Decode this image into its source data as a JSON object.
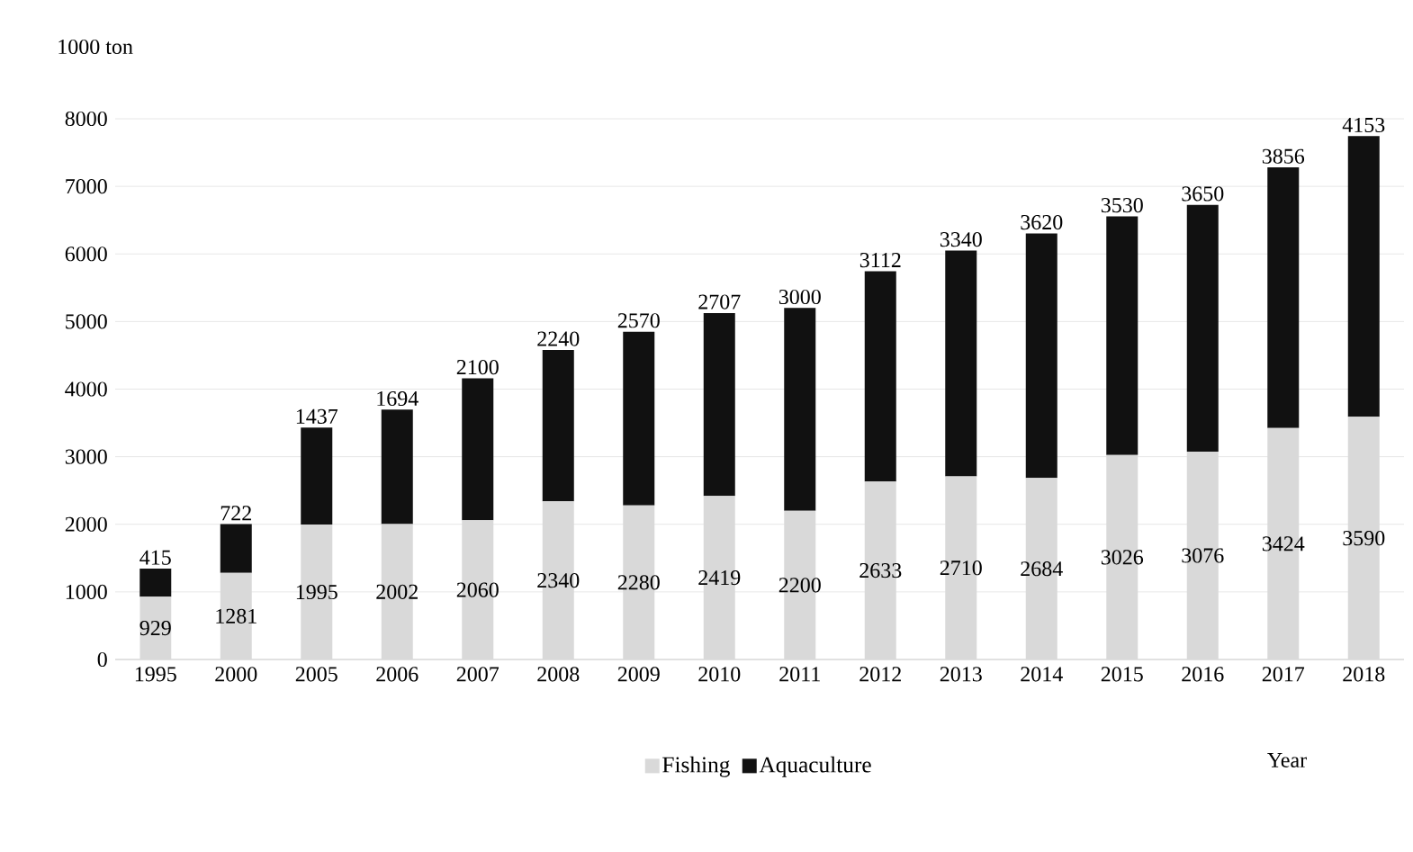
{
  "chart_data": {
    "type": "bar",
    "stacked": true,
    "ylabel": "1000 ton",
    "xlabel": "Year",
    "categories": [
      "1995",
      "2000",
      "2005",
      "2006",
      "2007",
      "2008",
      "2009",
      "2010",
      "2011",
      "2012",
      "2013",
      "2014",
      "2015",
      "2016",
      "2017",
      "2018"
    ],
    "series": [
      {
        "name": "Fishing",
        "color": "#d9d9d9",
        "values": [
          929,
          1281,
          1995,
          2002,
          2060,
          2340,
          2280,
          2419,
          2200,
          2633,
          2710,
          2684,
          3026,
          3076,
          3424,
          3590
        ]
      },
      {
        "name": "Aquaculture",
        "color": "#111111",
        "values": [
          415,
          722,
          1437,
          1694,
          2100,
          2240,
          2570,
          2707,
          3000,
          3112,
          3340,
          3620,
          3530,
          3650,
          3856,
          4153
        ]
      }
    ],
    "ylim": [
      0,
      8000
    ],
    "yticks": [
      0,
      1000,
      2000,
      3000,
      4000,
      5000,
      6000,
      7000,
      8000
    ],
    "grid": "y",
    "legend": "bottom",
    "data_labels": true
  }
}
